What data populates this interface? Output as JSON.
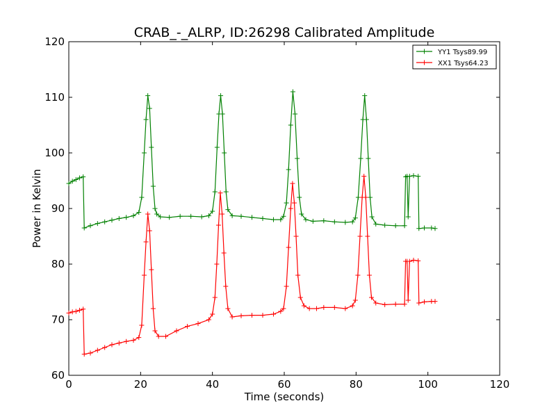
{
  "chart_data": {
    "type": "line",
    "title": "CRAB_-_ALRP, ID:26298 Calibrated Amplitude",
    "xlabel": "Time (seconds)",
    "ylabel": "Power in Kelvin",
    "xlim": [
      0,
      120
    ],
    "ylim": [
      60,
      120
    ],
    "xticks": [
      0,
      20,
      40,
      60,
      80,
      100,
      120
    ],
    "yticks": [
      60,
      70,
      80,
      90,
      100,
      110,
      120
    ],
    "grid": false,
    "legend_position": "top-right",
    "series": [
      {
        "name": "YY1 Tsys89.99",
        "color": "#008000",
        "marker": "+",
        "points": [
          [
            0,
            94.5
          ],
          [
            1,
            94.9
          ],
          [
            2,
            95.2
          ],
          [
            3,
            95.5
          ],
          [
            4,
            95.7
          ],
          [
            4.3,
            86.5
          ],
          [
            6,
            86.9
          ],
          [
            8,
            87.3
          ],
          [
            10,
            87.6
          ],
          [
            12,
            87.9
          ],
          [
            14,
            88.2
          ],
          [
            16,
            88.4
          ],
          [
            18,
            88.7
          ],
          [
            19.5,
            89.3
          ],
          [
            20.3,
            92
          ],
          [
            21,
            100
          ],
          [
            21.5,
            106
          ],
          [
            22,
            110.3
          ],
          [
            22.5,
            108
          ],
          [
            23,
            101
          ],
          [
            23.5,
            94
          ],
          [
            24,
            90
          ],
          [
            24.5,
            89
          ],
          [
            25.5,
            88.5
          ],
          [
            28,
            88.4
          ],
          [
            31,
            88.6
          ],
          [
            34,
            88.6
          ],
          [
            37,
            88.5
          ],
          [
            39,
            88.7
          ],
          [
            40,
            89.5
          ],
          [
            40.7,
            93
          ],
          [
            41.3,
            101
          ],
          [
            41.8,
            107
          ],
          [
            42.3,
            110.3
          ],
          [
            42.8,
            107
          ],
          [
            43.3,
            100
          ],
          [
            43.8,
            93
          ],
          [
            44.3,
            89.8
          ],
          [
            45.5,
            88.7
          ],
          [
            48,
            88.6
          ],
          [
            51,
            88.4
          ],
          [
            54,
            88.2
          ],
          [
            57,
            88
          ],
          [
            59,
            88
          ],
          [
            59.8,
            88.6
          ],
          [
            60.6,
            91
          ],
          [
            61.2,
            97
          ],
          [
            61.8,
            105
          ],
          [
            62.4,
            111
          ],
          [
            63,
            107
          ],
          [
            63.6,
            99
          ],
          [
            64.2,
            92
          ],
          [
            64.8,
            89
          ],
          [
            66,
            88
          ],
          [
            68,
            87.7
          ],
          [
            71,
            87.8
          ],
          [
            74,
            87.6
          ],
          [
            77,
            87.5
          ],
          [
            79,
            87.6
          ],
          [
            79.8,
            88.3
          ],
          [
            80.6,
            92
          ],
          [
            81.3,
            99
          ],
          [
            81.9,
            106
          ],
          [
            82.4,
            110.3
          ],
          [
            82.9,
            106
          ],
          [
            83.4,
            99
          ],
          [
            83.9,
            92
          ],
          [
            84.4,
            88.5
          ],
          [
            85.5,
            87.2
          ],
          [
            88,
            87
          ],
          [
            91,
            86.9
          ],
          [
            93.5,
            86.9
          ],
          [
            93.8,
            95.7
          ],
          [
            94.2,
            95.8
          ],
          [
            94.5,
            88.5
          ],
          [
            94.9,
            95.8
          ],
          [
            96,
            95.9
          ],
          [
            97.3,
            95.8
          ],
          [
            97.5,
            86.4
          ],
          [
            99,
            86.5
          ],
          [
            101,
            86.5
          ],
          [
            102,
            86.4
          ]
        ]
      },
      {
        "name": "XX1 Tsys64.23",
        "color": "#ff0000",
        "marker": "+",
        "points": [
          [
            0,
            71.2
          ],
          [
            1,
            71.4
          ],
          [
            2,
            71.5
          ],
          [
            3,
            71.7
          ],
          [
            4,
            71.9
          ],
          [
            4.3,
            63.8
          ],
          [
            6,
            64
          ],
          [
            8,
            64.5
          ],
          [
            10,
            65
          ],
          [
            12,
            65.5
          ],
          [
            14,
            65.8
          ],
          [
            16,
            66.1
          ],
          [
            18,
            66.3
          ],
          [
            19.5,
            66.8
          ],
          [
            20.3,
            69
          ],
          [
            21,
            78
          ],
          [
            21.5,
            84
          ],
          [
            22,
            89
          ],
          [
            22.5,
            86
          ],
          [
            23,
            79
          ],
          [
            23.5,
            72
          ],
          [
            24,
            68
          ],
          [
            25,
            67
          ],
          [
            27,
            67
          ],
          [
            30,
            68
          ],
          [
            33,
            68.8
          ],
          [
            36,
            69.3
          ],
          [
            39,
            70
          ],
          [
            40,
            71
          ],
          [
            40.7,
            74
          ],
          [
            41.2,
            80
          ],
          [
            41.7,
            87
          ],
          [
            42.2,
            92.8
          ],
          [
            42.7,
            89
          ],
          [
            43.2,
            82
          ],
          [
            43.7,
            76
          ],
          [
            44.3,
            72
          ],
          [
            45.5,
            70.5
          ],
          [
            48,
            70.7
          ],
          [
            51,
            70.8
          ],
          [
            54,
            70.8
          ],
          [
            57,
            71
          ],
          [
            59,
            71.5
          ],
          [
            59.8,
            72
          ],
          [
            60.6,
            76
          ],
          [
            61.2,
            83
          ],
          [
            61.8,
            90
          ],
          [
            62.3,
            94.5
          ],
          [
            62.8,
            91
          ],
          [
            63.3,
            85
          ],
          [
            63.8,
            78
          ],
          [
            64.5,
            74
          ],
          [
            65.5,
            72.5
          ],
          [
            67,
            72
          ],
          [
            69,
            72
          ],
          [
            71,
            72.2
          ],
          [
            74,
            72.2
          ],
          [
            77,
            72
          ],
          [
            79,
            72.5
          ],
          [
            79.8,
            73.5
          ],
          [
            80.5,
            78
          ],
          [
            81.1,
            85
          ],
          [
            81.7,
            92
          ],
          [
            82.2,
            95.8
          ],
          [
            82.7,
            92
          ],
          [
            83.2,
            85
          ],
          [
            83.7,
            78
          ],
          [
            84.3,
            74
          ],
          [
            85.5,
            73
          ],
          [
            88,
            72.7
          ],
          [
            91,
            72.8
          ],
          [
            93.5,
            72.8
          ],
          [
            93.8,
            80.5
          ],
          [
            94.2,
            80.5
          ],
          [
            94.5,
            73.5
          ],
          [
            94.9,
            80.5
          ],
          [
            96,
            80.7
          ],
          [
            97.3,
            80.6
          ],
          [
            97.5,
            73
          ],
          [
            99,
            73.2
          ],
          [
            101,
            73.3
          ],
          [
            102,
            73.3
          ]
        ]
      }
    ]
  }
}
